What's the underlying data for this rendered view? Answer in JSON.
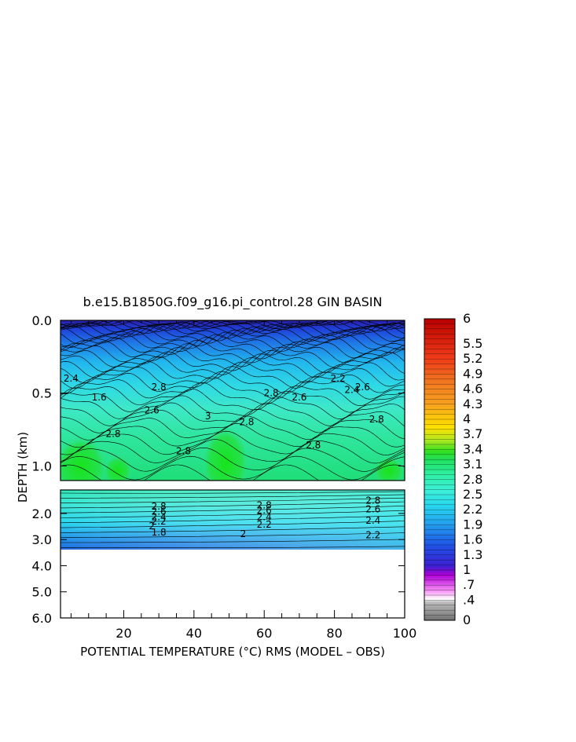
{
  "chart_data": {
    "type": "heatmap",
    "title": "b.e15.B1850G.f09_g16.pi_control.28 GIN BASIN",
    "xlabel": "POTENTIAL TEMPERATURE (°C) RMS (MODEL – OBS)",
    "ylabel": "DEPTH (km)",
    "x_ticks": [
      "20",
      "40",
      "60",
      "80",
      "100"
    ],
    "x_tick_values": [
      20,
      40,
      60,
      80,
      100
    ],
    "xlim": [
      2,
      100
    ],
    "upper_panel": {
      "ylim": [
        0,
        1.1
      ],
      "y_ticks": [
        "0.0",
        "0.5",
        "1.0"
      ],
      "y_tick_values": [
        0,
        0.5,
        1.0
      ]
    },
    "lower_panel": {
      "ylim": [
        1.1,
        6.0
      ],
      "y_ticks": [
        "2.0",
        "3.0",
        "4.0",
        "5.0",
        "6.0"
      ],
      "y_tick_values": [
        2.0,
        3.0,
        4.0,
        5.0,
        6.0
      ],
      "data_bottom_depth": 3.35
    },
    "colorbar": {
      "range": [
        0,
        6
      ],
      "labels": [
        "0",
        ".4",
        ".7",
        "1",
        "1.3",
        "1.6",
        "1.9",
        "2.2",
        "2.5",
        "2.8",
        "3.1",
        "3.4",
        "3.7",
        "4",
        "4.3",
        "4.6",
        "4.9",
        "5.2",
        "5.5",
        "6"
      ],
      "label_values": [
        0,
        0.4,
        0.7,
        1,
        1.3,
        1.6,
        1.9,
        2.2,
        2.5,
        2.8,
        3.1,
        3.4,
        3.7,
        4,
        4.3,
        4.6,
        4.9,
        5.2,
        5.5,
        6
      ]
    },
    "upper_contour_labels": [
      {
        "text": "2.8",
        "x": 30,
        "y": 0.48
      },
      {
        "text": "2.6",
        "x": 28,
        "y": 0.64
      },
      {
        "text": "2.8",
        "x": 17,
        "y": 0.8
      },
      {
        "text": "2.8",
        "x": 37,
        "y": 0.92
      },
      {
        "text": "3",
        "x": 44,
        "y": 0.68
      },
      {
        "text": "2.8",
        "x": 55,
        "y": 0.72
      },
      {
        "text": "2.8",
        "x": 62,
        "y": 0.52
      },
      {
        "text": "2.6",
        "x": 70,
        "y": 0.55
      },
      {
        "text": "2.8",
        "x": 74,
        "y": 0.88
      },
      {
        "text": "2.4",
        "x": 85,
        "y": 0.5
      },
      {
        "text": "2.2",
        "x": 81,
        "y": 0.42
      },
      {
        "text": "2.8",
        "x": 92,
        "y": 0.7
      },
      {
        "text": "1.6",
        "x": 13,
        "y": 0.55
      },
      {
        "text": "2.4",
        "x": 5,
        "y": 0.42
      },
      {
        "text": "2.6",
        "x": 88,
        "y": 0.48
      }
    ],
    "lower_contour_labels": [
      {
        "text": "2.8",
        "x": 30,
        "y": 1.85
      },
      {
        "text": "2.6",
        "x": 30,
        "y": 2.05
      },
      {
        "text": "2.4",
        "x": 30,
        "y": 2.25
      },
      {
        "text": "2.2",
        "x": 30,
        "y": 2.42
      },
      {
        "text": "2",
        "x": 28,
        "y": 2.6
      },
      {
        "text": "1.8",
        "x": 30,
        "y": 2.85
      },
      {
        "text": "2.8",
        "x": 60,
        "y": 1.8
      },
      {
        "text": "2.6",
        "x": 60,
        "y": 2.0
      },
      {
        "text": "2.4",
        "x": 60,
        "y": 2.25
      },
      {
        "text": "2.2",
        "x": 60,
        "y": 2.55
      },
      {
        "text": "2",
        "x": 54,
        "y": 2.9
      },
      {
        "text": "2.8",
        "x": 91,
        "y": 1.62
      },
      {
        "text": "2.6",
        "x": 91,
        "y": 1.95
      },
      {
        "text": "2.4",
        "x": 91,
        "y": 2.4
      },
      {
        "text": "2.2",
        "x": 91,
        "y": 2.95
      }
    ]
  }
}
